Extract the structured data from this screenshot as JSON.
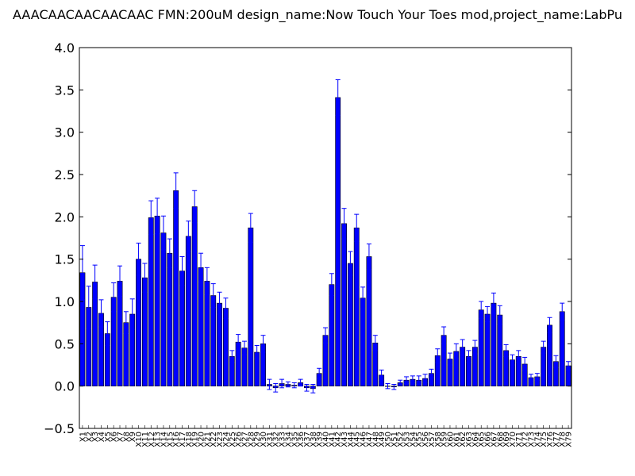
{
  "chart_data": {
    "type": "bar",
    "title": "AAACAACAACAACAAC  FMN:200uM  design_name:Now Touch Your Toes mod,project_name:LabPu",
    "xlabel": "",
    "ylabel": "",
    "ylim": [
      -0.5,
      4.0
    ],
    "yticks": [
      "−0.5",
      "0.0",
      "0.5",
      "1.0",
      "1.5",
      "2.0",
      "2.5",
      "3.0",
      "3.5",
      "4.0"
    ],
    "grid": false,
    "bar_color": "#0000ff",
    "error_color": "#0000ff",
    "categories": [
      "X1",
      "X2",
      "X3",
      "X4",
      "X5",
      "X6",
      "X7",
      "X8",
      "X9",
      "X10",
      "X11",
      "X12",
      "X13",
      "X14",
      "X15",
      "X16",
      "X17",
      "X18",
      "X19",
      "X20",
      "X21",
      "X22",
      "X23",
      "X24",
      "X25",
      "X26",
      "X27",
      "X28",
      "X29",
      "X30",
      "X31",
      "X32",
      "X33",
      "X34",
      "X35",
      "X36",
      "X37",
      "X38",
      "X39",
      "X40",
      "X41",
      "X42",
      "X43",
      "X44",
      "X45",
      "X46",
      "X47",
      "X48",
      "X49",
      "X50",
      "X51",
      "X52",
      "X53",
      "X54",
      "X55",
      "X56",
      "X57",
      "X58",
      "X59",
      "X60",
      "X61",
      "X62",
      "X63",
      "X64",
      "X65",
      "X66",
      "X67",
      "X68",
      "X69",
      "X70",
      "X71",
      "X72",
      "X73",
      "X74",
      "X75",
      "X76",
      "X77",
      "X78",
      "X79"
    ],
    "values": [
      1.34,
      0.93,
      1.23,
      0.86,
      0.62,
      1.05,
      1.24,
      0.75,
      0.85,
      1.5,
      1.28,
      1.99,
      2.01,
      1.81,
      1.57,
      2.31,
      1.36,
      1.77,
      2.12,
      1.4,
      1.24,
      1.07,
      0.98,
      0.92,
      0.35,
      0.52,
      0.45,
      1.87,
      0.4,
      0.5,
      0.02,
      -0.02,
      0.03,
      0.02,
      0.01,
      0.04,
      -0.02,
      -0.03,
      0.15,
      0.6,
      1.2,
      3.41,
      1.92,
      1.45,
      1.87,
      1.04,
      1.53,
      0.51,
      0.13,
      0.0,
      -0.01,
      0.04,
      0.07,
      0.08,
      0.07,
      0.09,
      0.15,
      0.36,
      0.6,
      0.32,
      0.41,
      0.46,
      0.35,
      0.46,
      0.9,
      0.85,
      0.98,
      0.84,
      0.42,
      0.31,
      0.35,
      0.26,
      0.1,
      0.11,
      0.46,
      0.72,
      0.29,
      0.88,
      0.24
    ],
    "errors": [
      0.32,
      0.25,
      0.2,
      0.16,
      0.14,
      0.17,
      0.18,
      0.13,
      0.18,
      0.19,
      0.17,
      0.2,
      0.21,
      0.2,
      0.17,
      0.21,
      0.17,
      0.18,
      0.19,
      0.17,
      0.16,
      0.14,
      0.13,
      0.12,
      0.07,
      0.09,
      0.08,
      0.17,
      0.08,
      0.1,
      0.06,
      0.05,
      0.05,
      0.03,
      0.03,
      0.04,
      0.04,
      0.05,
      0.06,
      0.09,
      0.13,
      0.21,
      0.18,
      0.14,
      0.16,
      0.13,
      0.15,
      0.09,
      0.06,
      0.03,
      0.03,
      0.03,
      0.04,
      0.04,
      0.05,
      0.05,
      0.05,
      0.08,
      0.1,
      0.07,
      0.09,
      0.09,
      0.07,
      0.08,
      0.1,
      0.09,
      0.12,
      0.11,
      0.07,
      0.06,
      0.07,
      0.08,
      0.04,
      0.04,
      0.07,
      0.09,
      0.07,
      0.1,
      0.05
    ]
  }
}
